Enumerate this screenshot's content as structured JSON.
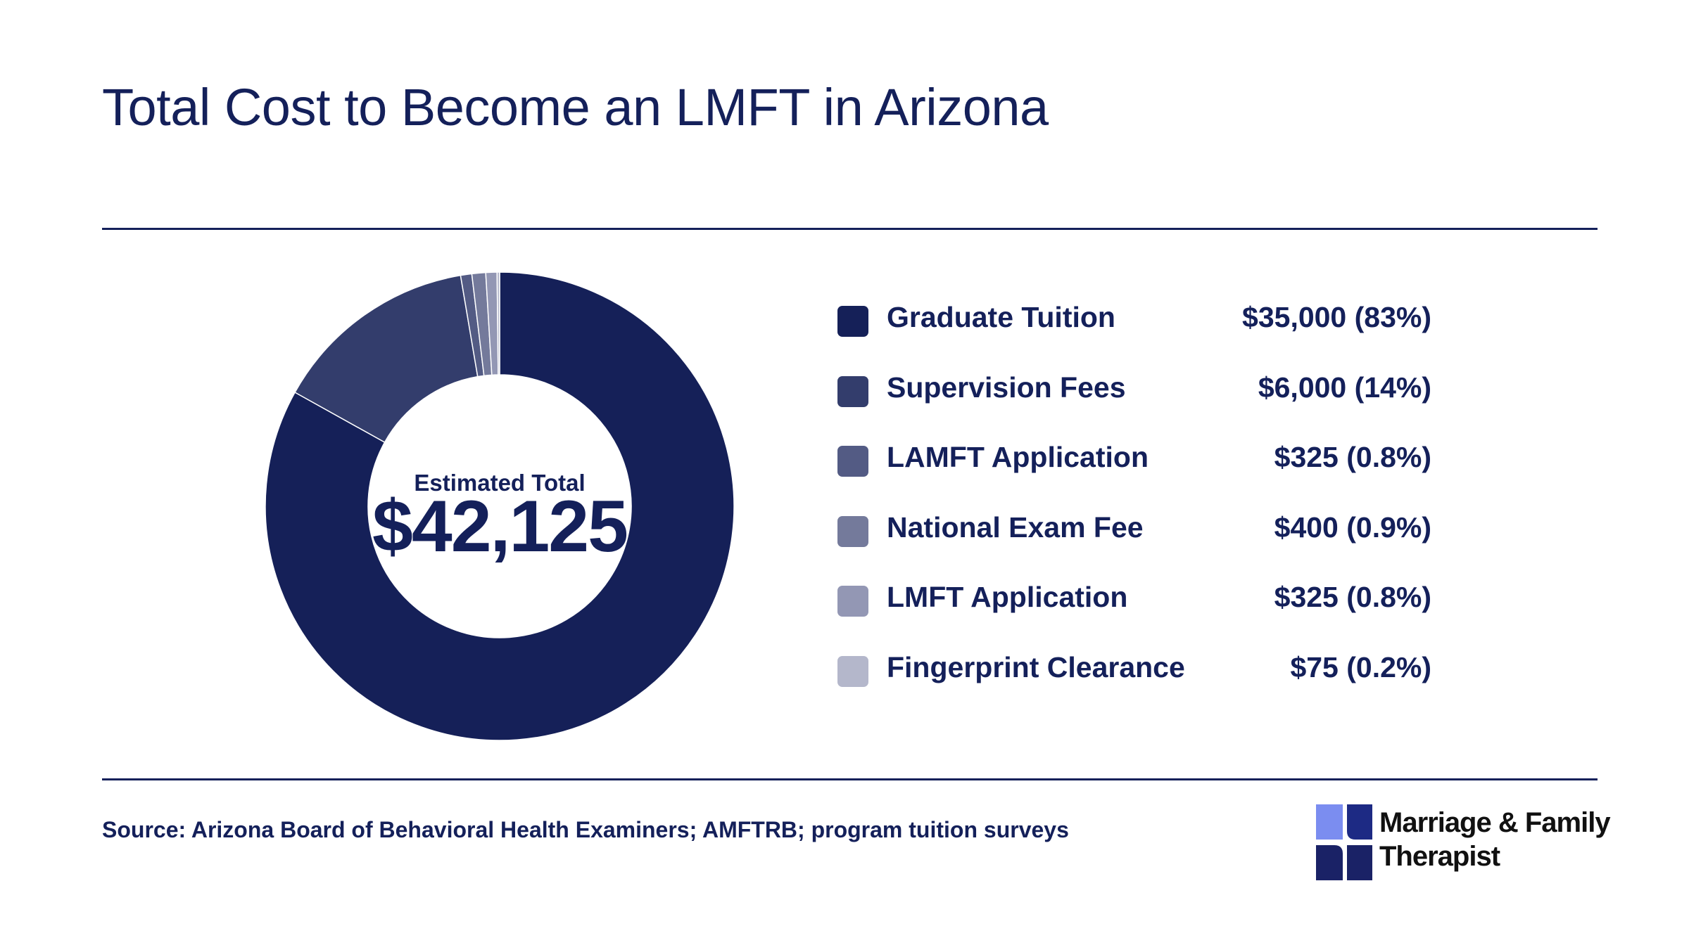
{
  "title": "Total Cost to Become an LMFT in Arizona",
  "center": {
    "label": "Estimated Total",
    "value": "$42,125"
  },
  "chart_data": {
    "type": "pie",
    "style": "donut",
    "slices": [
      {
        "label": "Graduate Tuition",
        "value": 35000,
        "value_label": "$35,000 (83%)",
        "color": "#152058"
      },
      {
        "label": "Supervision Fees",
        "value": 6000,
        "value_label": "$6,000 (14%)",
        "color": "#333d6c"
      },
      {
        "label": "LAMFT Application",
        "value": 325,
        "value_label": "$325 (0.8%)",
        "color": "#535b84"
      },
      {
        "label": "National Exam Fee",
        "value": 400,
        "value_label": "$400 (0.9%)",
        "color": "#747a9b"
      },
      {
        "label": "LMFT Application",
        "value": 325,
        "value_label": "$325 (0.8%)",
        "color": "#9397b4"
      },
      {
        "label": "Fingerprint Clearance",
        "value": 75,
        "value_label": "$75 (0.2%)",
        "color": "#b4b7cb"
      }
    ],
    "legend_position": "right"
  },
  "source": "Source: Arizona Board of Behavioral Health Examiners; AMFTRB; program tuition surveys",
  "logo": {
    "line1": "Marriage & Family",
    "line2": "Therapist"
  }
}
